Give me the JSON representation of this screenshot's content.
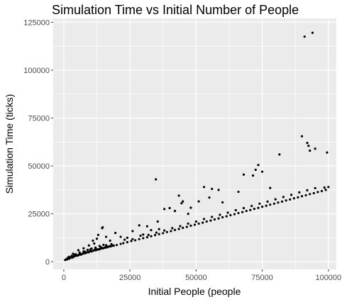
{
  "chart_data": {
    "type": "scatter",
    "title": "Simulation Time vs Initial Number of People",
    "xlabel": "Initial People (people",
    "ylabel": "Simulation Time (ticks)",
    "xlim": [
      -4000,
      103000
    ],
    "ylim": [
      -4000,
      127000
    ],
    "xticks": [
      0,
      25000,
      50000,
      75000,
      100000
    ],
    "xtick_labels": [
      "0",
      "25000",
      "50000",
      "75000",
      "100000"
    ],
    "yticks": [
      0,
      25000,
      50000,
      75000,
      100000,
      125000
    ],
    "ytick_labels": [
      "0",
      "25000",
      "50000",
      "75000",
      "100000",
      "125000"
    ],
    "grid": true,
    "legend": "none",
    "colors": {
      "panel": "#ebebeb",
      "grid": "#ffffff",
      "point": "#000000"
    },
    "points": [
      [
        500,
        900
      ],
      [
        900,
        1300
      ],
      [
        1300,
        1200
      ],
      [
        1700,
        1700
      ],
      [
        2100,
        1600
      ],
      [
        2500,
        2100
      ],
      [
        2900,
        2300
      ],
      [
        3300,
        2200
      ],
      [
        3700,
        2700
      ],
      [
        4100,
        2900
      ],
      [
        4500,
        3100
      ],
      [
        4900,
        3300
      ],
      [
        5300,
        3200
      ],
      [
        5700,
        3600
      ],
      [
        6100,
        3800
      ],
      [
        6500,
        3700
      ],
      [
        6900,
        4100
      ],
      [
        7300,
        4300
      ],
      [
        7700,
        4500
      ],
      [
        8100,
        4400
      ],
      [
        8500,
        4800
      ],
      [
        8900,
        5000
      ],
      [
        9300,
        4900
      ],
      [
        9700,
        5300
      ],
      [
        10100,
        5500
      ],
      [
        10500,
        5400
      ],
      [
        10900,
        5700
      ],
      [
        11300,
        5900
      ],
      [
        11700,
        6100
      ],
      [
        12100,
        6000
      ],
      [
        12500,
        6300
      ],
      [
        12900,
        6500
      ],
      [
        13300,
        6400
      ],
      [
        13700,
        6700
      ],
      [
        14100,
        6900
      ],
      [
        14500,
        7100
      ],
      [
        14900,
        7000
      ],
      [
        15300,
        7300
      ],
      [
        15700,
        7500
      ],
      [
        16100,
        7400
      ],
      [
        16500,
        7700
      ],
      [
        16900,
        7900
      ],
      [
        17300,
        8100
      ],
      [
        17700,
        8000
      ],
      [
        18100,
        8300
      ],
      [
        18500,
        8500
      ],
      [
        18900,
        8400
      ],
      [
        1500,
        2000
      ],
      [
        3000,
        3100
      ],
      [
        4500,
        3900
      ],
      [
        6000,
        4800
      ],
      [
        7500,
        5400
      ],
      [
        9000,
        6200
      ],
      [
        10500,
        6900
      ],
      [
        12000,
        7400
      ],
      [
        13500,
        8200
      ],
      [
        15000,
        8800
      ],
      [
        2000,
        2600
      ],
      [
        4000,
        3600
      ],
      [
        6000,
        4300
      ],
      [
        8000,
        5200
      ],
      [
        10000,
        6400
      ],
      [
        12000,
        7000
      ],
      [
        14000,
        7600
      ],
      [
        16000,
        8600
      ],
      [
        18000,
        9200
      ],
      [
        20000,
        8700
      ],
      [
        21500,
        9300
      ],
      [
        22500,
        9700
      ],
      [
        24000,
        10200
      ],
      [
        25500,
        10800
      ],
      [
        27000,
        11200
      ],
      [
        28500,
        11800
      ],
      [
        30000,
        12300
      ],
      [
        31500,
        12800
      ],
      [
        33000,
        13300
      ],
      [
        34500,
        13900
      ],
      [
        36000,
        14400
      ],
      [
        37500,
        14900
      ],
      [
        39000,
        15500
      ],
      [
        40500,
        16000
      ],
      [
        42000,
        16600
      ],
      [
        43500,
        17100
      ],
      [
        45000,
        17700
      ],
      [
        46500,
        18200
      ],
      [
        48000,
        18800
      ],
      [
        49500,
        19300
      ],
      [
        51000,
        19900
      ],
      [
        52500,
        20400
      ],
      [
        54000,
        21000
      ],
      [
        55500,
        21500
      ],
      [
        57000,
        22100
      ],
      [
        58500,
        22600
      ],
      [
        60000,
        23200
      ],
      [
        61500,
        23700
      ],
      [
        63000,
        24300
      ],
      [
        64500,
        24800
      ],
      [
        66000,
        25400
      ],
      [
        67500,
        25900
      ],
      [
        69000,
        26500
      ],
      [
        70500,
        27000
      ],
      [
        72000,
        27600
      ],
      [
        73500,
        28100
      ],
      [
        75000,
        28700
      ],
      [
        76500,
        29200
      ],
      [
        78000,
        29800
      ],
      [
        79500,
        30300
      ],
      [
        81000,
        30900
      ],
      [
        82500,
        31400
      ],
      [
        84000,
        32000
      ],
      [
        85500,
        32500
      ],
      [
        87000,
        33100
      ],
      [
        88500,
        33600
      ],
      [
        90000,
        34200
      ],
      [
        91500,
        34700
      ],
      [
        93000,
        35300
      ],
      [
        94500,
        35800
      ],
      [
        96000,
        36400
      ],
      [
        97500,
        36900
      ],
      [
        99000,
        37500
      ],
      [
        100000,
        39000
      ],
      [
        23000,
        11500
      ],
      [
        29000,
        13600
      ],
      [
        35000,
        15200
      ],
      [
        41000,
        17500
      ],
      [
        47000,
        19900
      ],
      [
        53000,
        22300
      ],
      [
        59000,
        24500
      ],
      [
        65000,
        26900
      ],
      [
        71000,
        29100
      ],
      [
        77000,
        31400
      ],
      [
        83000,
        33800
      ],
      [
        89000,
        36200
      ],
      [
        95000,
        38400
      ],
      [
        98500,
        38700
      ],
      [
        92000,
        37300
      ],
      [
        86000,
        34900
      ],
      [
        80000,
        32600
      ],
      [
        74000,
        30300
      ],
      [
        68000,
        28000
      ],
      [
        62000,
        25600
      ],
      [
        56000,
        23400
      ],
      [
        50000,
        21000
      ],
      [
        44000,
        18600
      ],
      [
        38000,
        16300
      ],
      [
        32000,
        14000
      ],
      [
        26000,
        11800
      ],
      [
        34800,
        43000
      ],
      [
        43500,
        34500
      ],
      [
        45000,
        31500
      ],
      [
        44500,
        30500
      ],
      [
        48000,
        28200
      ],
      [
        51000,
        31500
      ],
      [
        53000,
        39000
      ],
      [
        55000,
        33500
      ],
      [
        56000,
        38000
      ],
      [
        58500,
        37500
      ],
      [
        60000,
        31000
      ],
      [
        66000,
        36500
      ],
      [
        68000,
        45500
      ],
      [
        71500,
        45000
      ],
      [
        72500,
        48000
      ],
      [
        73500,
        50500
      ],
      [
        75000,
        47000
      ],
      [
        81500,
        56000
      ],
      [
        78000,
        38500
      ],
      [
        90000,
        65500
      ],
      [
        92000,
        62000
      ],
      [
        92500,
        60500
      ],
      [
        93000,
        58000
      ],
      [
        95000,
        59000
      ],
      [
        99500,
        57000
      ],
      [
        91000,
        117500
      ],
      [
        94000,
        119500
      ],
      [
        14500,
        17500
      ],
      [
        14700,
        18000
      ],
      [
        13000,
        14000
      ],
      [
        11000,
        11000
      ],
      [
        16000,
        13000
      ],
      [
        19500,
        15000
      ],
      [
        21500,
        13000
      ],
      [
        24000,
        12500
      ],
      [
        26000,
        16000
      ],
      [
        28500,
        19000
      ],
      [
        31500,
        18500
      ],
      [
        33000,
        16500
      ],
      [
        36000,
        17000
      ],
      [
        38000,
        27500
      ],
      [
        40000,
        28000
      ],
      [
        42000,
        26500
      ],
      [
        47000,
        25000
      ],
      [
        35500,
        21000
      ],
      [
        30000,
        14200
      ],
      [
        17500,
        11000
      ],
      [
        5500,
        6000
      ],
      [
        7500,
        7000
      ],
      [
        9500,
        8500
      ],
      [
        11500,
        9500
      ],
      [
        12500,
        12000
      ],
      [
        3500,
        4200
      ]
    ]
  }
}
